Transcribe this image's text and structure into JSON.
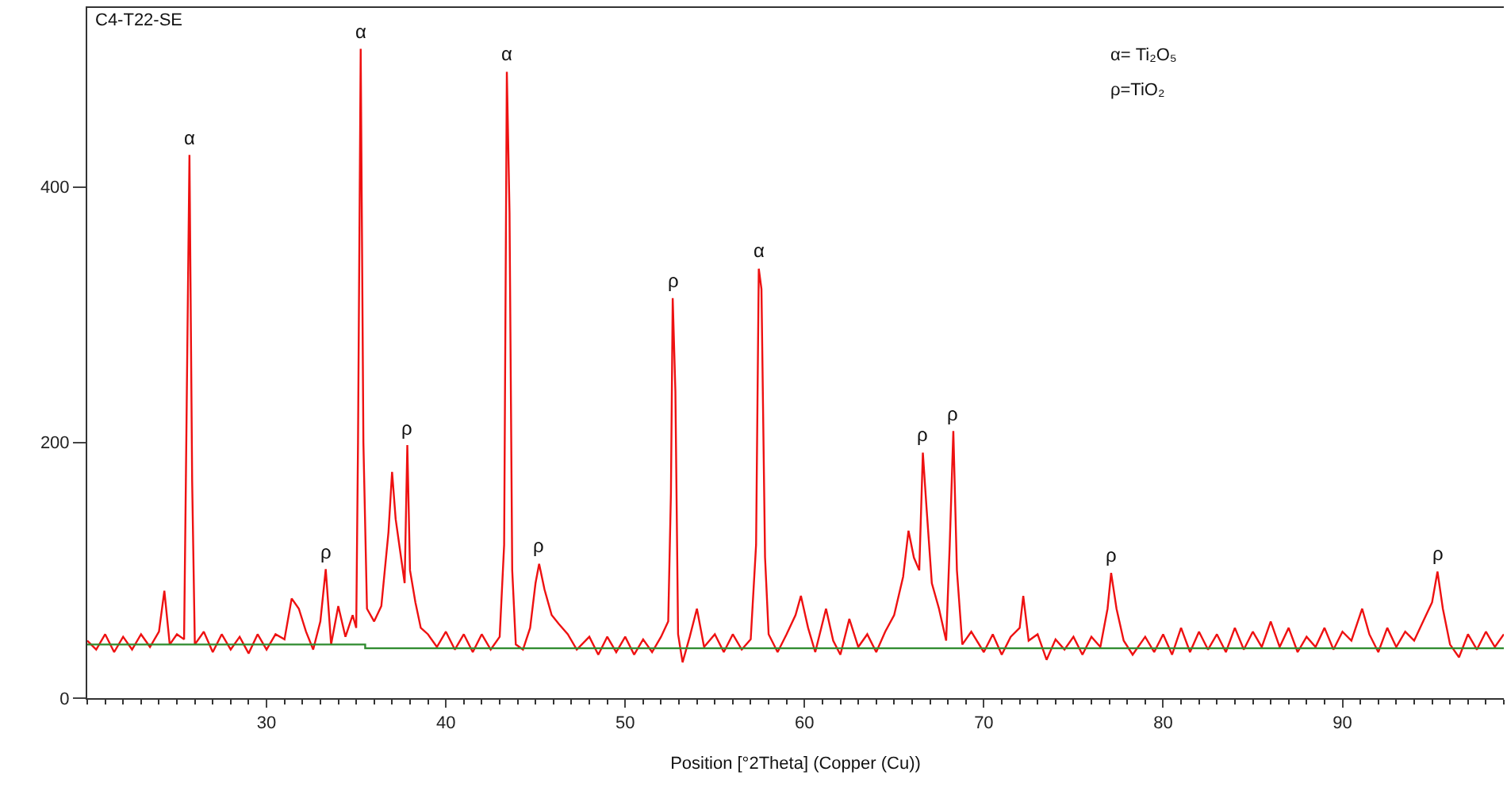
{
  "chart_data": {
    "type": "line",
    "title": "C4-T22-SE",
    "xlabel": "Position [°2Theta] (Copper (Cu))",
    "xlim": [
      20,
      99
    ],
    "xticks": [
      30,
      40,
      50,
      60,
      70,
      80,
      90
    ],
    "ylim": [
      0,
      540
    ],
    "yticks": [
      0,
      200,
      400
    ],
    "marker": "none",
    "line_style": "solid",
    "series": [
      {
        "color": "#ee1111",
        "x": [
          20,
          20.5,
          21,
          21.5,
          22,
          22.5,
          23,
          23.5,
          24,
          24.3,
          24.6,
          25,
          25.4,
          25.5,
          25.7,
          25.85,
          26,
          26.5,
          27,
          27.5,
          28,
          28.5,
          29,
          29.5,
          30,
          30.5,
          31,
          31.4,
          31.8,
          32.2,
          32.6,
          33,
          33.3,
          33.6,
          34,
          34.4,
          34.8,
          35.0,
          35.1,
          35.25,
          35.4,
          35.6,
          36,
          36.4,
          36.8,
          37.0,
          37.2,
          37.5,
          37.7,
          37.85,
          38,
          38.3,
          38.6,
          39,
          39.5,
          40,
          40.5,
          41,
          41.5,
          42,
          42.5,
          43,
          43.25,
          43.4,
          43.55,
          43.7,
          43.9,
          44.3,
          44.7,
          45.0,
          45.2,
          45.5,
          45.9,
          46.3,
          46.8,
          47.3,
          48,
          48.5,
          49,
          49.5,
          50,
          50.5,
          51,
          51.5,
          52,
          52.4,
          52.55,
          52.65,
          52.8,
          52.95,
          53.2,
          53.6,
          54,
          54.4,
          55,
          55.5,
          56,
          56.5,
          57,
          57.3,
          57.45,
          57.6,
          57.8,
          58,
          58.5,
          59,
          59.5,
          59.8,
          60.2,
          60.6,
          61.2,
          61.6,
          62,
          62.5,
          63,
          63.5,
          64,
          64.5,
          65,
          65.5,
          65.8,
          66.1,
          66.4,
          66.6,
          66.8,
          67.1,
          67.5,
          67.9,
          68.1,
          68.3,
          68.5,
          68.8,
          69.3,
          70,
          70.5,
          71,
          71.5,
          72,
          72.2,
          72.5,
          73,
          73.5,
          74,
          74.5,
          75,
          75.5,
          76,
          76.5,
          76.9,
          77.1,
          77.4,
          77.8,
          78.3,
          79,
          79.5,
          80,
          80.5,
          81,
          81.5,
          82,
          82.5,
          83,
          83.5,
          84,
          84.5,
          85,
          85.5,
          86,
          86.5,
          87,
          87.5,
          88,
          88.5,
          89,
          89.5,
          90,
          90.5,
          91.1,
          91.5,
          92,
          92.5,
          93,
          93.5,
          94,
          94.5,
          95,
          95.3,
          95.6,
          96,
          96.5,
          97,
          97.5,
          98,
          98.5,
          99
        ],
        "values": [
          45,
          38,
          50,
          36,
          48,
          38,
          50,
          40,
          52,
          84,
          42,
          50,
          46,
          170,
          425,
          170,
          42,
          52,
          36,
          50,
          38,
          48,
          35,
          50,
          38,
          50,
          46,
          78,
          70,
          52,
          38,
          60,
          101,
          42,
          72,
          48,
          65,
          55,
          200,
          508,
          200,
          70,
          60,
          72,
          130,
          177,
          140,
          110,
          90,
          198,
          100,
          75,
          55,
          50,
          40,
          52,
          38,
          50,
          36,
          50,
          38,
          48,
          120,
          490,
          380,
          100,
          42,
          38,
          55,
          90,
          105,
          85,
          65,
          58,
          50,
          38,
          48,
          34,
          48,
          36,
          48,
          34,
          46,
          36,
          48,
          60,
          160,
          313,
          240,
          50,
          28,
          48,
          70,
          40,
          50,
          36,
          50,
          38,
          46,
          120,
          336,
          320,
          110,
          50,
          36,
          50,
          65,
          80,
          55,
          36,
          70,
          45,
          34,
          62,
          40,
          50,
          36,
          52,
          65,
          95,
          131,
          110,
          100,
          192,
          150,
          90,
          70,
          45,
          120,
          209,
          100,
          42,
          52,
          36,
          50,
          34,
          48,
          55,
          80,
          45,
          50,
          30,
          46,
          38,
          48,
          34,
          48,
          40,
          70,
          98,
          70,
          45,
          34,
          48,
          36,
          50,
          34,
          55,
          36,
          52,
          38,
          50,
          36,
          55,
          38,
          52,
          40,
          60,
          40,
          55,
          36,
          48,
          40,
          55,
          38,
          52,
          45,
          70,
          50,
          36,
          55,
          40,
          52,
          45,
          60,
          75,
          99,
          70,
          42,
          32,
          50,
          38,
          52,
          40,
          50
        ]
      },
      {
        "color": "#2e8b2e",
        "x": [
          20,
          35.5,
          35.5,
          99
        ],
        "values": [
          42,
          42,
          39,
          39
        ]
      }
    ],
    "annotations": [
      "α= Ti₂O₅",
      "ρ=TiO₂",
      {
        "text": "α",
        "x": 25.7,
        "y": 425
      },
      {
        "text": "α",
        "x": 35.25,
        "y": 508
      },
      {
        "text": "ρ",
        "x": 37.85,
        "y": 198
      },
      {
        "text": "α",
        "x": 43.4,
        "y": 490
      },
      {
        "text": "ρ",
        "x": 33.3,
        "y": 101
      },
      {
        "text": "ρ",
        "x": 45.2,
        "y": 105
      },
      {
        "text": "ρ",
        "x": 52.65,
        "y": 313
      },
      {
        "text": "α",
        "x": 57.45,
        "y": 336
      },
      {
        "text": "ρ",
        "x": 66.6,
        "y": 192
      },
      {
        "text": "ρ",
        "x": 68.3,
        "y": 209
      },
      {
        "text": "ρ",
        "x": 77.1,
        "y": 98
      },
      {
        "text": "ρ",
        "x": 95.3,
        "y": 99
      }
    ]
  }
}
